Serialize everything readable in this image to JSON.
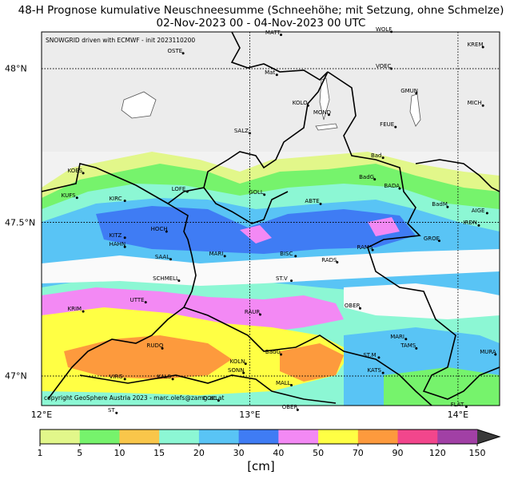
{
  "title_line1": "48-H Prognose kumulative Neuschneesumme (Schneehöhe; mit Setzung, ohne Schmelze)",
  "title_line2": "02-Nov-2023 00 - 04-Nov-2023 00 UTC",
  "source_note": "SNOWGRID driven with ECMWF - init 2023110200",
  "copyright": "copyright GeoSphere Austria 2023 - marc.olefs@zamg.ac.at",
  "longitude_labels": [
    {
      "text": "12°E",
      "lon": 12.0
    },
    {
      "text": "13°E",
      "lon": 13.0
    },
    {
      "text": "14°E",
      "lon": 14.0
    }
  ],
  "latitude_labels": [
    {
      "text": "48°N",
      "lat": 48.0
    },
    {
      "text": "47.5°N",
      "lat": 47.5
    },
    {
      "text": "47°N",
      "lat": 47.0
    }
  ],
  "colorbar": {
    "unit": "[cm]",
    "ticks": [
      "1",
      "5",
      "10",
      "15",
      "20",
      "30",
      "40",
      "50",
      "70",
      "90",
      "120",
      "150"
    ],
    "colors": [
      "#e2f78a",
      "#76f36c",
      "#f9c64a",
      "#8cf7d4",
      "#59c4f5",
      "#3f7cf4",
      "#f389f4",
      "#ffff44",
      "#fd9a3d",
      "#f2468c",
      "#a140a5"
    ],
    "extend_color": "#3a3a3a"
  },
  "cities": [
    {
      "name": "MATT",
      "lon": 13.15,
      "lat": 48.11
    },
    {
      "name": "WOLF",
      "lon": 13.68,
      "lat": 48.12
    },
    {
      "name": "KREM",
      "lon": 14.12,
      "lat": 48.07
    },
    {
      "name": "OSTE",
      "lon": 12.68,
      "lat": 48.05
    },
    {
      "name": "VOEC",
      "lon": 13.68,
      "lat": 48.0
    },
    {
      "name": "Mat",
      "lon": 13.13,
      "lat": 47.98
    },
    {
      "name": "GMUN",
      "lon": 13.8,
      "lat": 47.92
    },
    {
      "name": "MICH",
      "lon": 14.12,
      "lat": 47.88
    },
    {
      "name": "KOLO",
      "lon": 13.28,
      "lat": 47.88
    },
    {
      "name": "MOND",
      "lon": 13.38,
      "lat": 47.85
    },
    {
      "name": "FEUE",
      "lon": 13.7,
      "lat": 47.81
    },
    {
      "name": "SALZ",
      "lon": 13.0,
      "lat": 47.79
    },
    {
      "name": "Bad",
      "lon": 13.64,
      "lat": 47.71
    },
    {
      "name": "KOES",
      "lon": 12.2,
      "lat": 47.66
    },
    {
      "name": "BadG",
      "lon": 13.6,
      "lat": 47.64
    },
    {
      "name": "BADA",
      "lon": 13.72,
      "lat": 47.61
    },
    {
      "name": "GOLL",
      "lon": 13.07,
      "lat": 47.59
    },
    {
      "name": "KUFS",
      "lon": 12.17,
      "lat": 47.58
    },
    {
      "name": "KIRC",
      "lon": 12.4,
      "lat": 47.57
    },
    {
      "name": "LOFE",
      "lon": 12.7,
      "lat": 47.6
    },
    {
      "name": "ABTE",
      "lon": 13.34,
      "lat": 47.56
    },
    {
      "name": "BadM",
      "lon": 13.95,
      "lat": 47.55
    },
    {
      "name": "AIGE",
      "lon": 14.14,
      "lat": 47.53
    },
    {
      "name": "IRDN",
      "lon": 14.1,
      "lat": 47.49
    },
    {
      "name": "HOCH",
      "lon": 12.6,
      "lat": 47.47
    },
    {
      "name": "KITZ",
      "lon": 12.4,
      "lat": 47.45
    },
    {
      "name": "GROE",
      "lon": 13.91,
      "lat": 47.44
    },
    {
      "name": "HAHN",
      "lon": 12.4,
      "lat": 47.42
    },
    {
      "name": "RAMS",
      "lon": 13.59,
      "lat": 47.41
    },
    {
      "name": "MARI",
      "lon": 12.88,
      "lat": 47.39
    },
    {
      "name": "BISC",
      "lon": 13.22,
      "lat": 47.39
    },
    {
      "name": "SAAL",
      "lon": 12.62,
      "lat": 47.38
    },
    {
      "name": "RADS",
      "lon": 13.42,
      "lat": 47.37
    },
    {
      "name": "SCHMELL",
      "lon": 12.66,
      "lat": 47.31
    },
    {
      "name": "ST.V",
      "lon": 13.2,
      "lat": 47.31
    },
    {
      "name": "UTTE",
      "lon": 12.5,
      "lat": 47.24
    },
    {
      "name": "OBER",
      "lon": 13.53,
      "lat": 47.22
    },
    {
      "name": "KRIM",
      "lon": 12.2,
      "lat": 47.21
    },
    {
      "name": "RAUR",
      "lon": 13.05,
      "lat": 47.2
    },
    {
      "name": "MARI",
      "lon": 13.75,
      "lat": 47.12
    },
    {
      "name": "TAMS",
      "lon": 13.8,
      "lat": 47.09
    },
    {
      "name": "RUDO",
      "lon": 12.58,
      "lat": 47.09
    },
    {
      "name": "MURA",
      "lon": 14.18,
      "lat": 47.07
    },
    {
      "name": "BadG",
      "lon": 13.15,
      "lat": 47.07
    },
    {
      "name": "ST.M",
      "lon": 13.62,
      "lat": 47.06
    },
    {
      "name": "KOLN",
      "lon": 12.98,
      "lat": 47.04
    },
    {
      "name": "SONN",
      "lon": 12.97,
      "lat": 47.01
    },
    {
      "name": "KATS",
      "lon": 13.64,
      "lat": 47.01
    },
    {
      "name": "VIRG",
      "lon": 12.4,
      "lat": 46.99
    },
    {
      "name": "KALS",
      "lon": 12.63,
      "lat": 46.99
    },
    {
      "name": "MALL",
      "lon": 13.2,
      "lat": 46.97
    },
    {
      "name": "DOEL",
      "lon": 12.85,
      "lat": 46.92
    },
    {
      "name": "FLAT",
      "lon": 14.04,
      "lat": 46.9
    },
    {
      "name": "OBER",
      "lon": 13.23,
      "lat": 46.89
    },
    {
      "name": "ST",
      "lon": 12.36,
      "lat": 46.88
    }
  ]
}
